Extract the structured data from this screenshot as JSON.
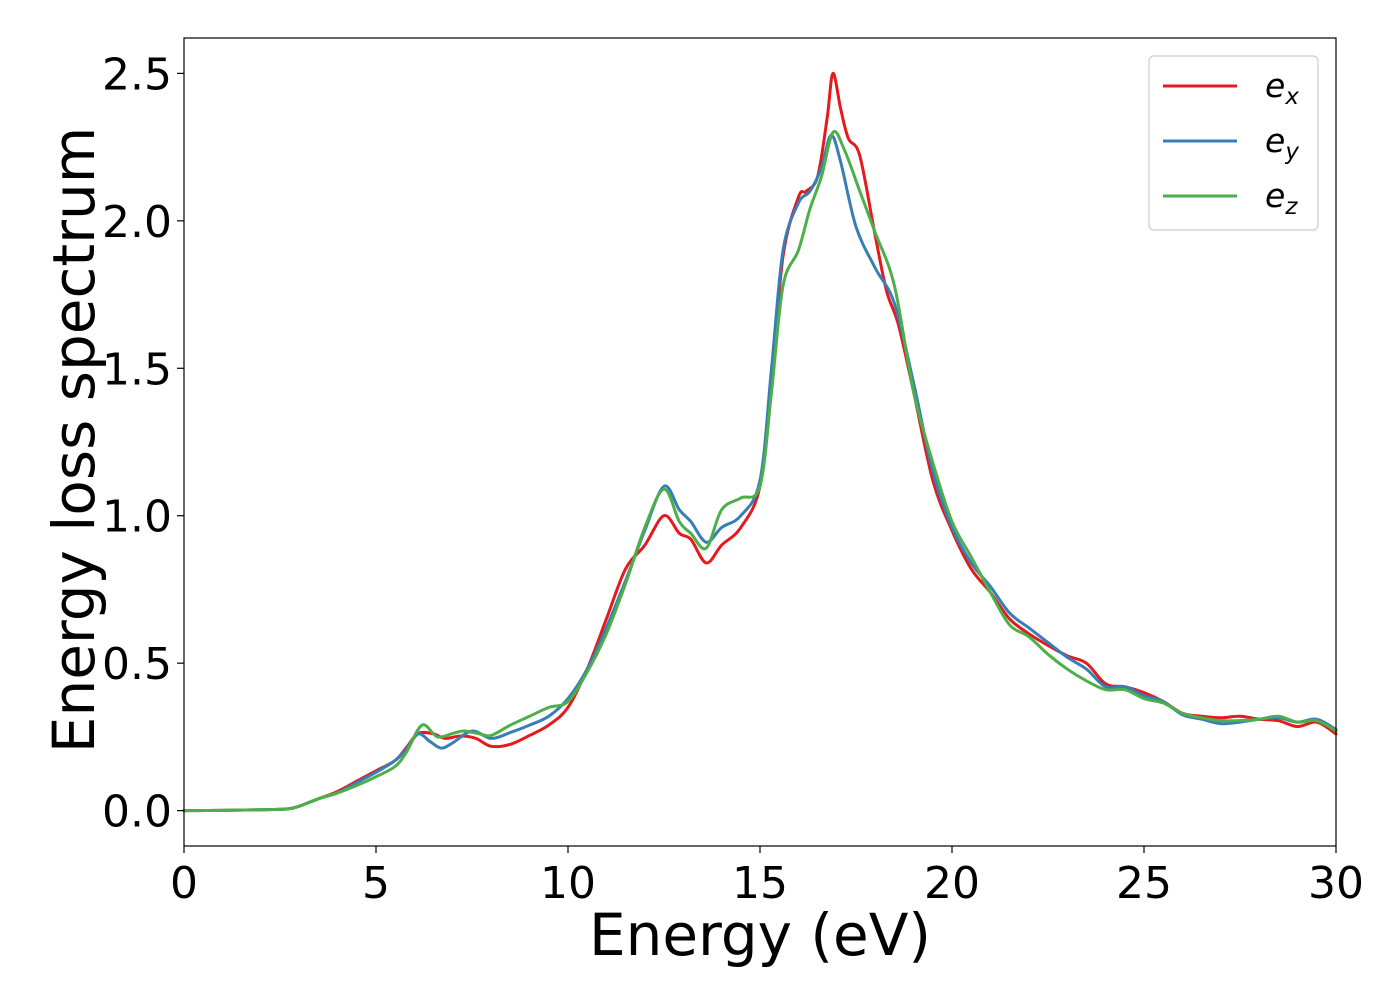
{
  "chart_data": {
    "type": "line",
    "xlabel": "Energy (eV)",
    "ylabel": "Energy loss spectrum",
    "xlim": [
      0,
      30
    ],
    "ylim": [
      -0.12,
      2.62
    ],
    "xticks": [
      0,
      5,
      10,
      15,
      20,
      25,
      30
    ],
    "yticks": [
      0.0,
      0.5,
      1.0,
      1.5,
      2.0,
      2.5
    ],
    "xtick_labels": [
      "0",
      "5",
      "10",
      "15",
      "20",
      "25",
      "30"
    ],
    "ytick_labels": [
      "0.0",
      "0.5",
      "1.0",
      "1.5",
      "2.0",
      "2.5"
    ],
    "grid": false,
    "legend_position": "upper right",
    "series": [
      {
        "name": "e_x",
        "label_base": "e",
        "label_sub": "x",
        "color": "#e41a1c",
        "points": [
          [
            0,
            0
          ],
          [
            1,
            0.001
          ],
          [
            2,
            0.003
          ],
          [
            2.7,
            0.006
          ],
          [
            3,
            0.015
          ],
          [
            3.5,
            0.04
          ],
          [
            4,
            0.065
          ],
          [
            4.5,
            0.1
          ],
          [
            5,
            0.135
          ],
          [
            5.5,
            0.17
          ],
          [
            5.8,
            0.215
          ],
          [
            6.1,
            0.262
          ],
          [
            6.5,
            0.26
          ],
          [
            6.8,
            0.245
          ],
          [
            7.2,
            0.253
          ],
          [
            7.6,
            0.245
          ],
          [
            8,
            0.218
          ],
          [
            8.5,
            0.225
          ],
          [
            9,
            0.255
          ],
          [
            9.5,
            0.29
          ],
          [
            10,
            0.35
          ],
          [
            10.5,
            0.48
          ],
          [
            11,
            0.65
          ],
          [
            11.5,
            0.82
          ],
          [
            12,
            0.9
          ],
          [
            12.5,
            1.0
          ],
          [
            12.9,
            0.94
          ],
          [
            13.2,
            0.92
          ],
          [
            13.6,
            0.84
          ],
          [
            14,
            0.9
          ],
          [
            14.5,
            0.96
          ],
          [
            15,
            1.1
          ],
          [
            15.3,
            1.45
          ],
          [
            15.6,
            1.88
          ],
          [
            16,
            2.08
          ],
          [
            16.2,
            2.1
          ],
          [
            16.5,
            2.15
          ],
          [
            16.75,
            2.35
          ],
          [
            16.9,
            2.5
          ],
          [
            17.1,
            2.38
          ],
          [
            17.3,
            2.28
          ],
          [
            17.6,
            2.22
          ],
          [
            18,
            1.95
          ],
          [
            18.3,
            1.76
          ],
          [
            18.6,
            1.65
          ],
          [
            19,
            1.42
          ],
          [
            19.5,
            1.12
          ],
          [
            20,
            0.95
          ],
          [
            20.5,
            0.82
          ],
          [
            21,
            0.74
          ],
          [
            21.5,
            0.65
          ],
          [
            22,
            0.6
          ],
          [
            22.5,
            0.56
          ],
          [
            23,
            0.525
          ],
          [
            23.5,
            0.5
          ],
          [
            24,
            0.43
          ],
          [
            24.5,
            0.42
          ],
          [
            25,
            0.4
          ],
          [
            25.5,
            0.37
          ],
          [
            26,
            0.33
          ],
          [
            26.5,
            0.32
          ],
          [
            27,
            0.315
          ],
          [
            27.5,
            0.32
          ],
          [
            28,
            0.31
          ],
          [
            28.5,
            0.305
          ],
          [
            29,
            0.285
          ],
          [
            29.5,
            0.3
          ],
          [
            30,
            0.26
          ]
        ]
      },
      {
        "name": "e_y",
        "label_base": "e",
        "label_sub": "y",
        "color": "#377eb8",
        "points": [
          [
            0,
            0
          ],
          [
            1,
            0.001
          ],
          [
            2,
            0.003
          ],
          [
            2.7,
            0.006
          ],
          [
            3,
            0.015
          ],
          [
            3.5,
            0.04
          ],
          [
            4,
            0.06
          ],
          [
            4.5,
            0.095
          ],
          [
            5,
            0.13
          ],
          [
            5.5,
            0.17
          ],
          [
            5.8,
            0.21
          ],
          [
            6.1,
            0.26
          ],
          [
            6.4,
            0.235
          ],
          [
            6.7,
            0.212
          ],
          [
            7,
            0.23
          ],
          [
            7.5,
            0.27
          ],
          [
            8,
            0.245
          ],
          [
            8.5,
            0.265
          ],
          [
            9,
            0.29
          ],
          [
            9.5,
            0.32
          ],
          [
            10,
            0.38
          ],
          [
            10.5,
            0.48
          ],
          [
            11,
            0.62
          ],
          [
            11.5,
            0.78
          ],
          [
            12,
            0.95
          ],
          [
            12.5,
            1.1
          ],
          [
            12.9,
            1.02
          ],
          [
            13.2,
            0.98
          ],
          [
            13.6,
            0.91
          ],
          [
            14,
            0.96
          ],
          [
            14.5,
            1.0
          ],
          [
            15,
            1.12
          ],
          [
            15.3,
            1.5
          ],
          [
            15.6,
            1.9
          ],
          [
            16,
            2.06
          ],
          [
            16.3,
            2.1
          ],
          [
            16.6,
            2.18
          ],
          [
            16.85,
            2.29
          ],
          [
            17.1,
            2.2
          ],
          [
            17.5,
            1.98
          ],
          [
            18,
            1.84
          ],
          [
            18.5,
            1.72
          ],
          [
            19,
            1.45
          ],
          [
            19.5,
            1.15
          ],
          [
            20,
            0.96
          ],
          [
            20.5,
            0.84
          ],
          [
            21,
            0.76
          ],
          [
            21.5,
            0.67
          ],
          [
            22,
            0.62
          ],
          [
            22.5,
            0.57
          ],
          [
            23,
            0.52
          ],
          [
            23.5,
            0.48
          ],
          [
            24,
            0.42
          ],
          [
            24.5,
            0.42
          ],
          [
            25,
            0.39
          ],
          [
            25.5,
            0.37
          ],
          [
            26,
            0.325
          ],
          [
            26.5,
            0.31
          ],
          [
            27,
            0.295
          ],
          [
            27.5,
            0.3
          ],
          [
            28,
            0.31
          ],
          [
            28.5,
            0.315
          ],
          [
            29,
            0.3
          ],
          [
            29.5,
            0.31
          ],
          [
            30,
            0.275
          ]
        ]
      },
      {
        "name": "e_z",
        "label_base": "e",
        "label_sub": "z",
        "color": "#4daf4a",
        "points": [
          [
            0,
            0
          ],
          [
            1,
            0.001
          ],
          [
            2,
            0.003
          ],
          [
            2.7,
            0.006
          ],
          [
            3,
            0.015
          ],
          [
            3.5,
            0.04
          ],
          [
            4,
            0.06
          ],
          [
            4.5,
            0.085
          ],
          [
            5,
            0.115
          ],
          [
            5.5,
            0.15
          ],
          [
            5.8,
            0.2
          ],
          [
            6.2,
            0.29
          ],
          [
            6.6,
            0.25
          ],
          [
            7,
            0.262
          ],
          [
            7.3,
            0.27
          ],
          [
            7.7,
            0.26
          ],
          [
            8,
            0.255
          ],
          [
            8.5,
            0.29
          ],
          [
            9,
            0.32
          ],
          [
            9.5,
            0.35
          ],
          [
            10,
            0.37
          ],
          [
            10.5,
            0.47
          ],
          [
            11,
            0.6
          ],
          [
            11.5,
            0.77
          ],
          [
            12,
            0.96
          ],
          [
            12.5,
            1.09
          ],
          [
            12.9,
            0.98
          ],
          [
            13.2,
            0.94
          ],
          [
            13.6,
            0.89
          ],
          [
            14,
            1.02
          ],
          [
            14.5,
            1.06
          ],
          [
            15,
            1.1
          ],
          [
            15.3,
            1.42
          ],
          [
            15.6,
            1.78
          ],
          [
            16,
            1.9
          ],
          [
            16.3,
            2.04
          ],
          [
            16.6,
            2.15
          ],
          [
            16.9,
            2.3
          ],
          [
            17.2,
            2.24
          ],
          [
            17.6,
            2.1
          ],
          [
            18,
            1.96
          ],
          [
            18.5,
            1.78
          ],
          [
            19,
            1.42
          ],
          [
            19.5,
            1.18
          ],
          [
            20,
            0.98
          ],
          [
            20.5,
            0.86
          ],
          [
            21,
            0.74
          ],
          [
            21.5,
            0.63
          ],
          [
            22,
            0.59
          ],
          [
            22.5,
            0.53
          ],
          [
            23,
            0.48
          ],
          [
            23.5,
            0.44
          ],
          [
            24,
            0.41
          ],
          [
            24.5,
            0.41
          ],
          [
            25,
            0.38
          ],
          [
            25.5,
            0.365
          ],
          [
            26,
            0.33
          ],
          [
            26.5,
            0.315
          ],
          [
            27,
            0.305
          ],
          [
            27.5,
            0.305
          ],
          [
            28,
            0.31
          ],
          [
            28.5,
            0.32
          ],
          [
            29,
            0.3
          ],
          [
            29.5,
            0.305
          ],
          [
            30,
            0.27
          ]
        ]
      }
    ]
  }
}
